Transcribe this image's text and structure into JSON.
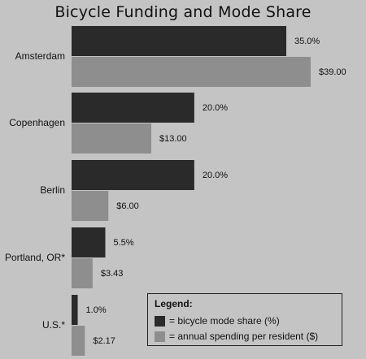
{
  "chart_data": {
    "type": "bar",
    "orientation": "horizontal",
    "title": "Bicycle Funding and Mode Share",
    "categories": [
      "Amsterdam",
      "Copenhagen",
      "Berlin",
      "Portland, OR*",
      "U.S.*"
    ],
    "series": [
      {
        "name": "= bicycle mode share (%)",
        "values": [
          35.0,
          20.0,
          20.0,
          5.5,
          1.0
        ],
        "labels": [
          "35.0%",
          "20.0%",
          "20.0%",
          "5.5%",
          "1.0%"
        ],
        "color": "#2a2a2a"
      },
      {
        "name": "= annual spending per resident ($)",
        "values": [
          39.0,
          13.0,
          6.0,
          3.43,
          2.17
        ],
        "labels": [
          "$39.00",
          "$13.00",
          "$6.00",
          "$3.43",
          "$2.17"
        ],
        "color": "#8e8e8e"
      }
    ],
    "legend": {
      "title": "Legend:",
      "placement": "bottom-right"
    },
    "grid": false
  }
}
